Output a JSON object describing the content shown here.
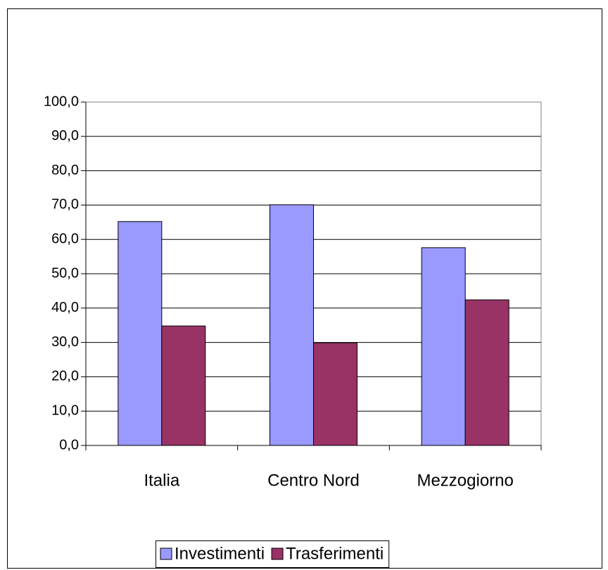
{
  "chart_data": {
    "type": "bar",
    "categories": [
      "Italia",
      "Centro Nord",
      "Mezzogiorno"
    ],
    "series": [
      {
        "name": "Investimenti",
        "color": "#9999ff",
        "values": [
          65.2,
          70.1,
          57.6
        ]
      },
      {
        "name": "Trasferimenti",
        "color": "#993366",
        "values": [
          34.8,
          29.9,
          42.4
        ]
      }
    ],
    "ylim": [
      0,
      100
    ],
    "yticks": [
      {
        "value": 0,
        "label": "0,0"
      },
      {
        "value": 10,
        "label": "10,0"
      },
      {
        "value": 20,
        "label": "20,0"
      },
      {
        "value": 30,
        "label": "30,0"
      },
      {
        "value": 40,
        "label": "40,0"
      },
      {
        "value": 50,
        "label": "50,0"
      },
      {
        "value": 60,
        "label": "60,0"
      },
      {
        "value": 70,
        "label": "70,0"
      },
      {
        "value": 80,
        "label": "80,0"
      },
      {
        "value": 90,
        "label": "90,0"
      },
      {
        "value": 100,
        "label": "100,0"
      }
    ],
    "grid": true,
    "legend": "bottom"
  }
}
